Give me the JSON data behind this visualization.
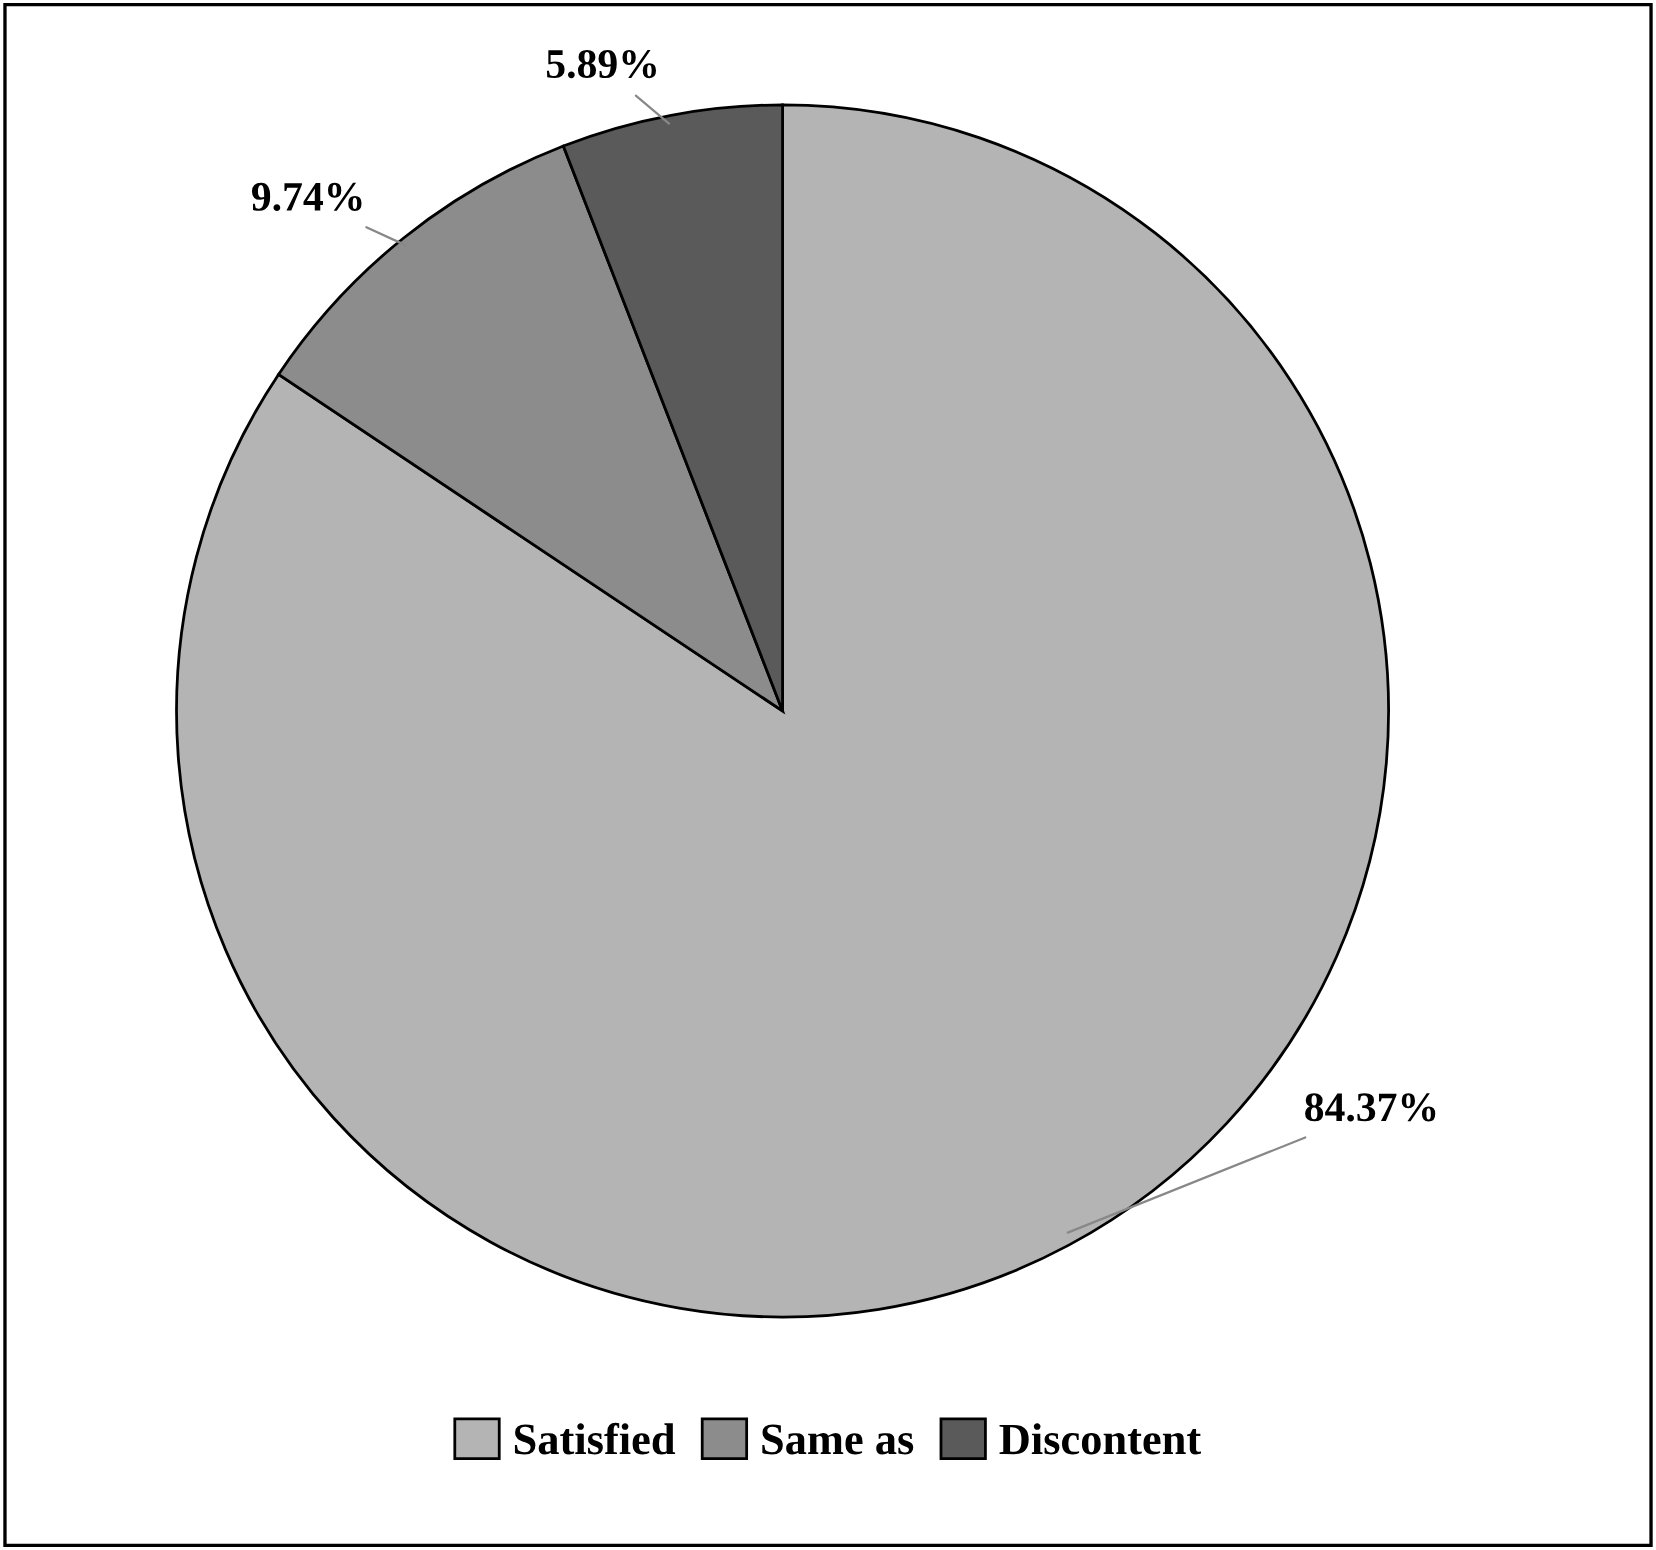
{
  "chart_data": {
    "type": "pie",
    "categories": [
      "Satisfied",
      "Same as",
      "Discontent"
    ],
    "values": [
      84.37,
      9.74,
      5.89
    ],
    "value_labels": [
      "84.37%",
      "9.74%",
      "5.89%"
    ],
    "colors": [
      "#b4b4b4",
      "#8c8c8c",
      "#5a5a5a"
    ],
    "legend": "bottom"
  }
}
